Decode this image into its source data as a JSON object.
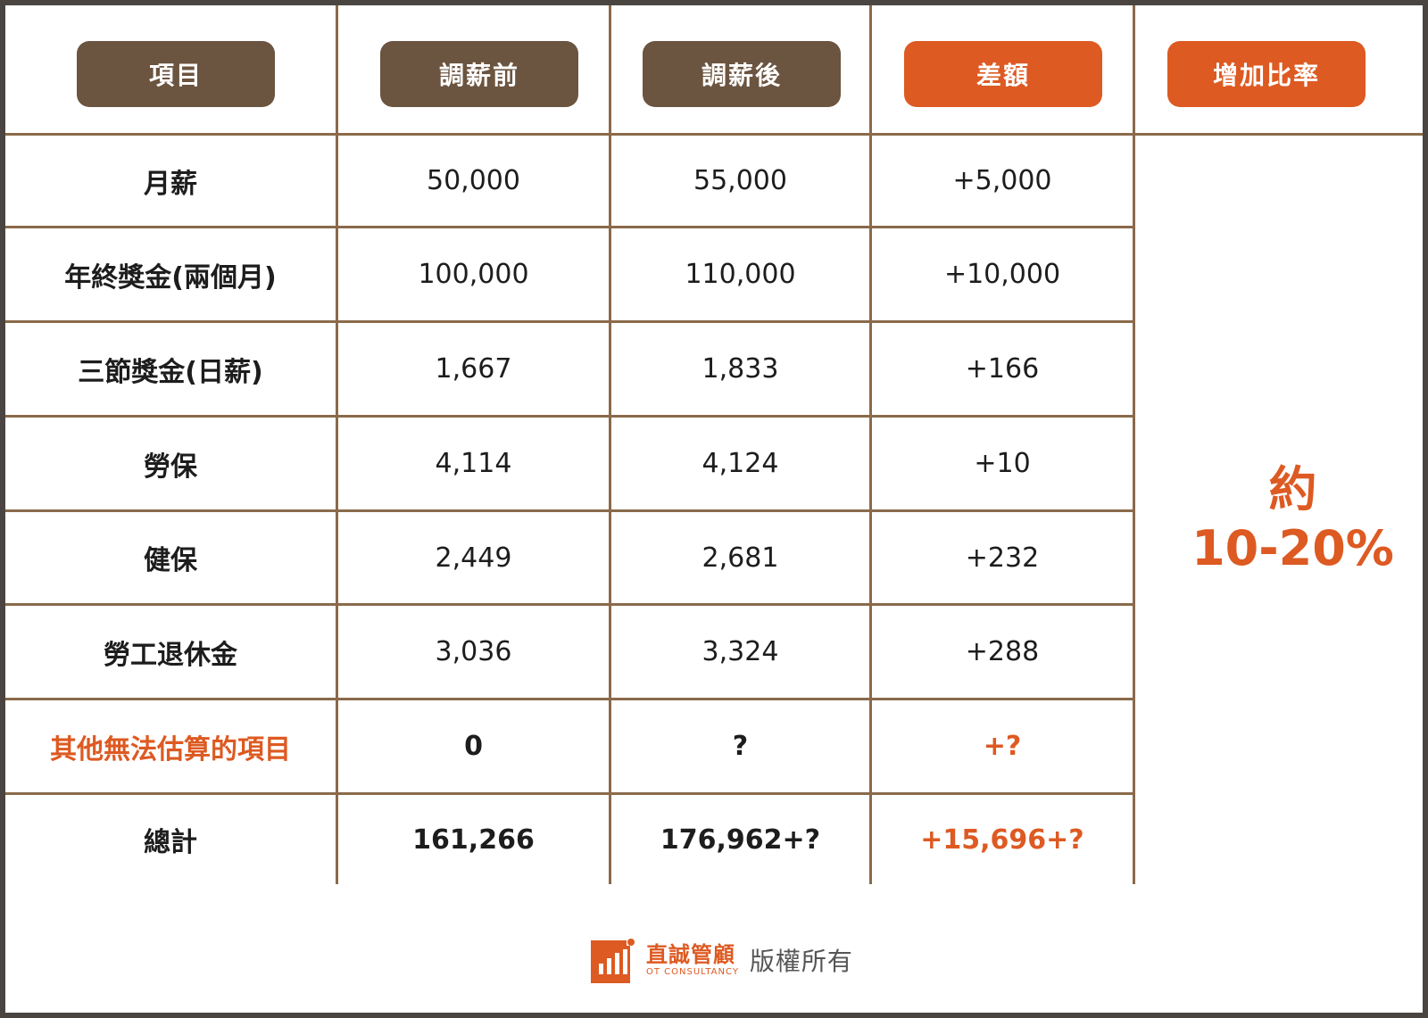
{
  "headers": [
    "項目",
    "調薪前",
    "調薪後",
    "差額",
    "增加比率"
  ],
  "rows": [
    {
      "item": "月薪",
      "before": "50,000",
      "after": "55,000",
      "diff": "+5,000"
    },
    {
      "item": "年終獎金(兩個月)",
      "before": "100,000",
      "after": "110,000",
      "diff": "+10,000"
    },
    {
      "item": "三節獎金(日薪)",
      "before": "1,667",
      "after": "1,833",
      "diff": "+166"
    },
    {
      "item": "勞保",
      "before": "4,114",
      "after": "4,124",
      "diff": "+10"
    },
    {
      "item": "健保",
      "before": "2,449",
      "after": "2,681",
      "diff": "+232"
    },
    {
      "item": "勞工退休金",
      "before": "3,036",
      "after": "3,324",
      "diff": "+288"
    },
    {
      "item": "其他無法估算的項目",
      "before": "0",
      "after": "?",
      "diff": "+?"
    },
    {
      "item": "總計",
      "before": "161,266",
      "after": "176,962+?",
      "diff": "+15,696+?"
    }
  ],
  "rate": {
    "prefix": "約",
    "value": "10-20%"
  },
  "footer": {
    "brand": "直誠管顧",
    "brand_sub": "OT CONSULTANCY",
    "copyright": "版權所有"
  },
  "colors": {
    "brown": "#6b5440",
    "orange": "#dd5a22",
    "grid": "#8a6a4a"
  }
}
